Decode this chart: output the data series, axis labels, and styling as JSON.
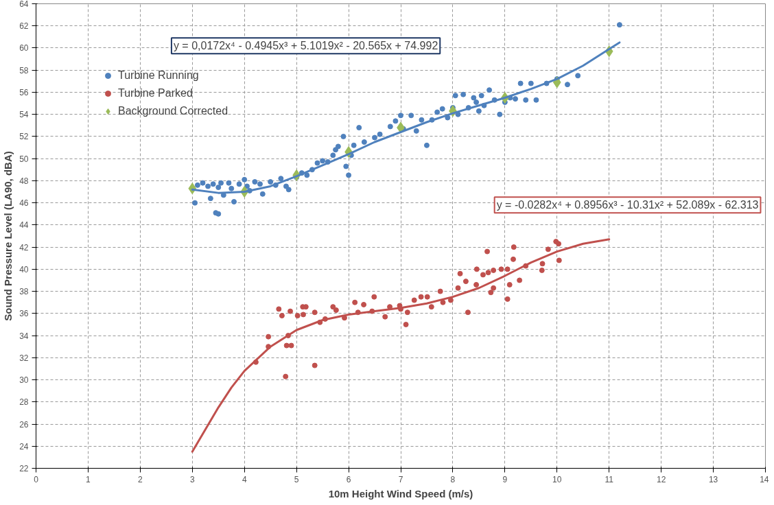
{
  "chart_data": {
    "type": "scatter",
    "xlabel": "10m Height Wind Speed (m/s)",
    "ylabel": "Sound Pressure Level (LA90, dBA)",
    "xlim": [
      0,
      14
    ],
    "ylim": [
      22,
      64
    ],
    "xticks": [
      0,
      1,
      2,
      3,
      4,
      5,
      6,
      7,
      8,
      9,
      10,
      11,
      12,
      13,
      14
    ],
    "yticks": [
      22,
      24,
      26,
      28,
      30,
      32,
      34,
      36,
      38,
      40,
      42,
      44,
      46,
      48,
      50,
      52,
      54,
      56,
      58,
      60,
      62,
      64
    ],
    "grid": true,
    "legend": "top left",
    "annotations": [
      "y = 0,0172x⁴ - 0.4945x³ + 5.1019x² - 20.565x + 74.992",
      "y = -0.0282x⁴ + 0.8956x³ - 10.31x² + 52.089x - 62.313"
    ],
    "series": [
      {
        "name": "Turbine Running",
        "marker": "circle",
        "color": "#4f81bd",
        "x": [
          3.05,
          3.1,
          3.2,
          3.3,
          3.35,
          3.4,
          3.45,
          3.5,
          3.5,
          3.55,
          3.6,
          3.7,
          3.75,
          3.8,
          3.9,
          4.0,
          4.05,
          4.1,
          4.2,
          4.3,
          4.35,
          4.5,
          4.6,
          4.7,
          4.8,
          4.85,
          5.0,
          5.1,
          5.2,
          5.3,
          5.4,
          5.5,
          5.6,
          5.7,
          5.75,
          5.8,
          5.9,
          5.95,
          6.0,
          6.05,
          6.1,
          6.2,
          6.3,
          6.5,
          6.6,
          6.8,
          6.9,
          7.0,
          7.05,
          7.2,
          7.3,
          7.4,
          7.5,
          7.6,
          7.7,
          7.8,
          7.9,
          8.0,
          8.05,
          8.1,
          8.2,
          8.3,
          8.4,
          8.45,
          8.5,
          8.55,
          8.6,
          8.7,
          8.8,
          8.9,
          9.0,
          9.1,
          9.2,
          9.3,
          9.4,
          9.5,
          9.6,
          9.8,
          10.0,
          10.2,
          10.4,
          11.2
        ],
        "values": [
          46.0,
          47.6,
          47.8,
          47.5,
          46.4,
          47.7,
          45.1,
          45.0,
          47.4,
          47.8,
          46.7,
          47.8,
          47.3,
          46.1,
          47.7,
          48.1,
          47.5,
          47.1,
          47.9,
          47.7,
          46.8,
          47.9,
          47.6,
          48.2,
          47.5,
          47.2,
          48.3,
          48.7,
          48.5,
          49.0,
          49.6,
          49.8,
          49.7,
          50.3,
          50.8,
          51.1,
          52.0,
          49.3,
          48.5,
          50.3,
          51.2,
          52.8,
          51.5,
          51.9,
          52.2,
          52.9,
          53.4,
          53.9,
          52.7,
          53.9,
          52.5,
          53.5,
          51.2,
          53.5,
          54.2,
          54.5,
          53.7,
          54.6,
          55.7,
          54.0,
          55.8,
          54.6,
          55.5,
          55.1,
          54.3,
          55.7,
          54.8,
          56.2,
          55.3,
          54.0,
          55.1,
          55.5,
          55.4,
          56.8,
          55.3,
          56.8,
          55.3,
          56.8,
          57.2,
          56.7,
          57.5,
          62.1
        ]
      },
      {
        "name": "Turbine Parked",
        "marker": "circle",
        "color": "#c0504d",
        "x": [
          4.22,
          4.46,
          4.46,
          4.66,
          4.72,
          4.79,
          4.81,
          4.84,
          4.88,
          4.9,
          5.02,
          5.12,
          5.13,
          5.18,
          5.35,
          5.35,
          5.45,
          5.55,
          5.7,
          5.76,
          5.92,
          6.12,
          6.18,
          6.29,
          6.45,
          6.49,
          6.7,
          6.79,
          6.98,
          7.0,
          7.1,
          7.13,
          7.26,
          7.39,
          7.51,
          7.59,
          7.76,
          7.81,
          7.96,
          8.1,
          8.14,
          8.25,
          8.29,
          8.45,
          8.46,
          8.58,
          8.66,
          8.68,
          8.73,
          8.78,
          8.78,
          8.93,
          9.05,
          9.05,
          9.09,
          9.16,
          9.17,
          9.28,
          9.4,
          9.71,
          9.72,
          9.83,
          9.98,
          10.04,
          10.03
        ],
        "values": [
          31.6,
          33.9,
          33.0,
          36.4,
          35.8,
          30.3,
          33.1,
          34.0,
          36.2,
          33.1,
          35.8,
          36.6,
          35.9,
          36.6,
          36.1,
          31.3,
          35.2,
          35.5,
          36.6,
          36.3,
          35.6,
          37.0,
          36.1,
          36.8,
          36.2,
          37.5,
          35.7,
          36.6,
          36.7,
          36.4,
          35.0,
          36.1,
          37.2,
          37.5,
          37.5,
          36.6,
          38.0,
          37.0,
          37.2,
          38.3,
          39.6,
          38.9,
          36.1,
          38.6,
          40.0,
          39.5,
          41.6,
          39.7,
          37.9,
          38.3,
          39.9,
          40.0,
          37.3,
          40.0,
          38.6,
          40.9,
          42.0,
          39.0,
          40.3,
          39.9,
          40.5,
          41.8,
          42.5,
          40.8,
          42.3
        ]
      },
      {
        "name": "Background Corrected",
        "marker": "diamond",
        "color": "#9bbb59",
        "x": [
          3,
          4,
          5,
          6,
          7,
          8,
          9,
          10,
          11
        ],
        "values": [
          47.3,
          47.0,
          48.5,
          50.6,
          52.8,
          54.3,
          55.5,
          56.9,
          59.7
        ]
      },
      {
        "type": "line",
        "color": "#4f81bd",
        "x": [
          3,
          3.5,
          4,
          4.5,
          5,
          5.5,
          6,
          6.5,
          7,
          7.5,
          8,
          8.5,
          9,
          9.5,
          10,
          10.5,
          11,
          11.2
        ],
        "values": [
          47.2,
          46.9,
          47.0,
          47.5,
          48.4,
          49.4,
          50.4,
          51.5,
          52.4,
          53.3,
          54.1,
          54.8,
          55.5,
          56.3,
          57.2,
          58.4,
          59.9,
          60.5
        ]
      },
      {
        "type": "line",
        "color": "#c0504d",
        "x": [
          3,
          3.25,
          3.5,
          3.75,
          4,
          4.5,
          5,
          5.5,
          6,
          6.5,
          7,
          7.5,
          8,
          8.5,
          9,
          9.5,
          10,
          10.5,
          11
        ],
        "values": [
          23.5,
          25.5,
          27.5,
          29.3,
          30.8,
          33.0,
          34.5,
          35.4,
          35.9,
          36.2,
          36.5,
          36.9,
          37.5,
          38.3,
          39.4,
          40.6,
          41.6,
          42.3,
          42.7
        ]
      }
    ]
  }
}
